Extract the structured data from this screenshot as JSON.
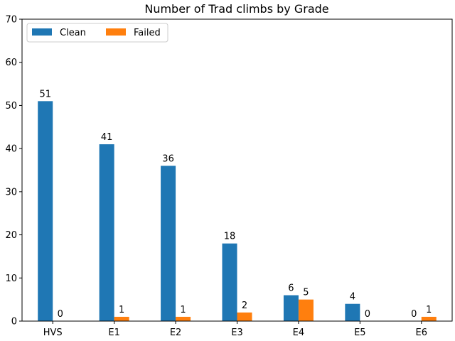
{
  "chart_data": {
    "type": "bar",
    "title": "Number of Trad climbs by Grade",
    "categories": [
      "HVS",
      "E1",
      "E2",
      "E3",
      "E4",
      "E5",
      "E6"
    ],
    "series": [
      {
        "name": "Clean",
        "values": [
          51,
          41,
          36,
          18,
          6,
          4,
          0
        ],
        "color": "#1f77b4"
      },
      {
        "name": "Failed",
        "values": [
          0,
          1,
          1,
          2,
          5,
          0,
          1
        ],
        "color": "#ff7f0e"
      }
    ],
    "ylim": [
      0,
      70
    ],
    "yticks": [
      0,
      10,
      20,
      30,
      40,
      50,
      60,
      70
    ],
    "grid": false,
    "legend": "top-left",
    "legend_columns": 2,
    "data_labels": true
  }
}
